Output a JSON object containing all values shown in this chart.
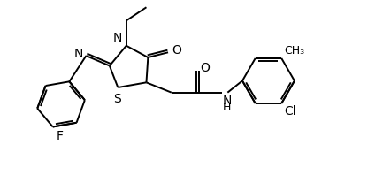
{
  "bg_color": "#ffffff",
  "bond_color": "#000000",
  "bond_lw": 1.4,
  "figsize": [
    4.33,
    1.98
  ],
  "dpi": 100,
  "xlim": [
    0,
    10.5
  ],
  "ylim": [
    0,
    5.2
  ]
}
